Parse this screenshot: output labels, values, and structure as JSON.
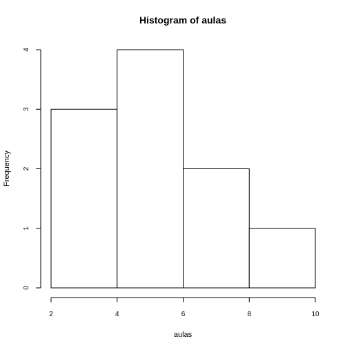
{
  "chart_data": {
    "type": "bar",
    "title": "Histogram of aulas",
    "xlabel": "aulas",
    "ylabel": "Frequency",
    "bins": [
      {
        "start": 2,
        "end": 4,
        "count": 3
      },
      {
        "start": 4,
        "end": 6,
        "count": 4
      },
      {
        "start": 6,
        "end": 8,
        "count": 2
      },
      {
        "start": 8,
        "end": 10,
        "count": 1
      }
    ],
    "xlim": [
      2,
      10
    ],
    "ylim": [
      0,
      4
    ],
    "x_ticks": [
      2,
      4,
      6,
      8,
      10
    ],
    "y_ticks": [
      0,
      1,
      2,
      3,
      4
    ],
    "grid": false,
    "legend": "none"
  }
}
